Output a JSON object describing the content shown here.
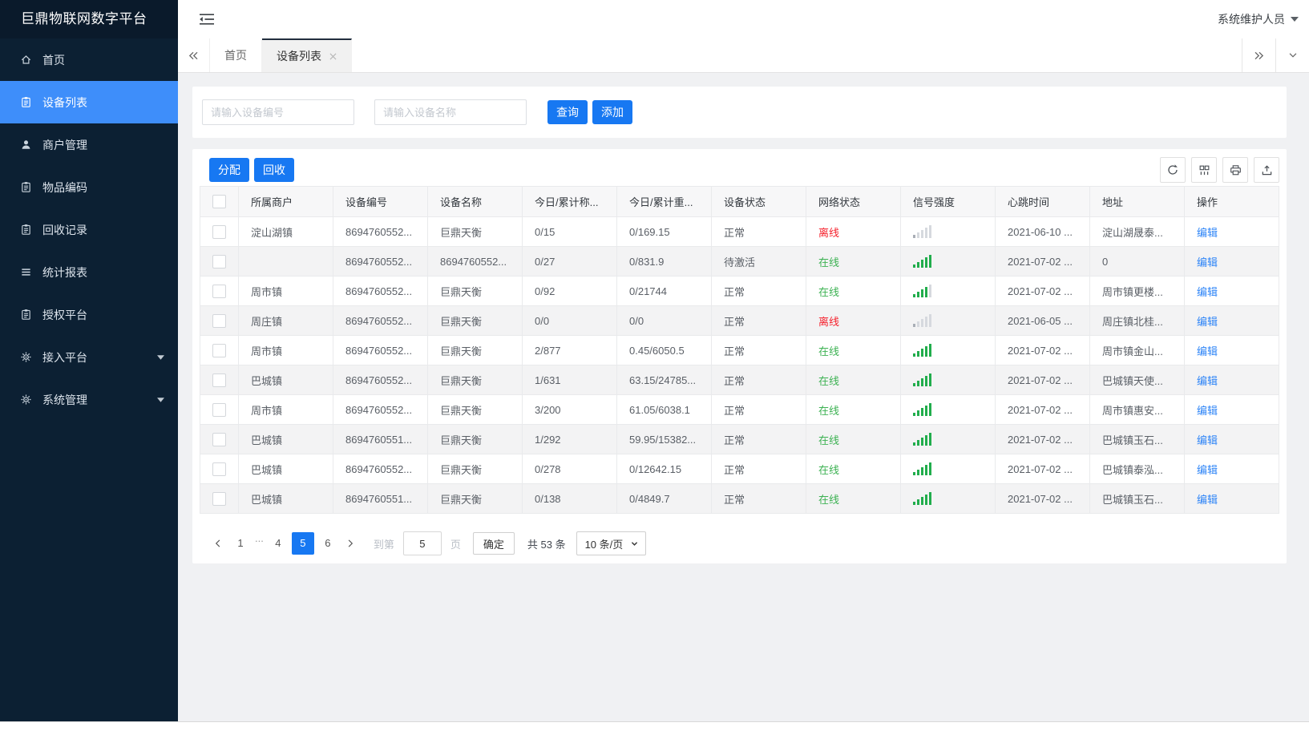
{
  "app": {
    "title": "巨鼎物联网数字平台",
    "user": "系统维护人员"
  },
  "colors": {
    "accent": "#1778f2",
    "sidebar_bg": "#0c2033",
    "sidebar_active": "#3e8efa",
    "online_green": "#3db253",
    "offline_red": "#f5222d",
    "signal_green": "#21ad4c",
    "link_blue": "#2d84f7"
  },
  "sidebar": {
    "items": [
      {
        "key": "home",
        "label": "首页",
        "icon": "home",
        "active": false,
        "expandable": false
      },
      {
        "key": "device-list",
        "label": "设备列表",
        "icon": "doc",
        "active": true,
        "expandable": false
      },
      {
        "key": "merchant-mgmt",
        "label": "商户管理",
        "icon": "user",
        "active": false,
        "expandable": false
      },
      {
        "key": "item-code",
        "label": "物品编码",
        "icon": "doc",
        "active": false,
        "expandable": false
      },
      {
        "key": "recycle-records",
        "label": "回收记录",
        "icon": "doc",
        "active": false,
        "expandable": false
      },
      {
        "key": "stats-report",
        "label": "统计报表",
        "icon": "rows",
        "active": false,
        "expandable": false
      },
      {
        "key": "auth-platform",
        "label": "授权平台",
        "icon": "doc",
        "active": false,
        "expandable": false
      },
      {
        "key": "access-platform",
        "label": "接入平台",
        "icon": "gear",
        "active": false,
        "expandable": true
      },
      {
        "key": "system-mgmt",
        "label": "系统管理",
        "icon": "gear",
        "active": false,
        "expandable": true
      }
    ]
  },
  "tabs": {
    "items": [
      {
        "key": "home",
        "label": "首页",
        "active": false,
        "closable": false
      },
      {
        "key": "device-list",
        "label": "设备列表",
        "active": true,
        "closable": true
      }
    ]
  },
  "search": {
    "device_no_placeholder": "请输入设备编号",
    "device_name_placeholder": "请输入设备名称",
    "query_label": "查询",
    "add_label": "添加"
  },
  "toolbar": {
    "assign_label": "分配",
    "recycle_label": "回收",
    "icons": [
      "refresh-icon",
      "filter-columns-icon",
      "print-icon",
      "export-icon"
    ]
  },
  "table": {
    "columns": [
      "所属商户",
      "设备编号",
      "设备名称",
      "今日/累计称...",
      "今日/累计重...",
      "设备状态",
      "网络状态",
      "信号强度",
      "心跳时间",
      "地址",
      "操作"
    ],
    "action_label": "编辑",
    "rows": [
      {
        "merchant": "淀山湖镇",
        "device_no": "8694760552...",
        "device_name": "巨鼎天衡",
        "today_total_count": "0/15",
        "today_total_weight": "0/169.15",
        "device_status": "正常",
        "network_status": "离线",
        "online": false,
        "signal_bars": 0,
        "heartbeat": "2021-06-10 ...",
        "address": "淀山湖晟泰..."
      },
      {
        "merchant": "",
        "device_no": "8694760552...",
        "device_name": "8694760552...",
        "today_total_count": "0/27",
        "today_total_weight": "0/831.9",
        "device_status": "待激活",
        "network_status": "在线",
        "online": true,
        "signal_bars": 5,
        "heartbeat": "2021-07-02 ...",
        "address": "0"
      },
      {
        "merchant": "周市镇",
        "device_no": "8694760552...",
        "device_name": "巨鼎天衡",
        "today_total_count": "0/92",
        "today_total_weight": "0/21744",
        "device_status": "正常",
        "network_status": "在线",
        "online": true,
        "signal_bars": 4,
        "heartbeat": "2021-07-02 ...",
        "address": "周市镇更楼..."
      },
      {
        "merchant": "周庄镇",
        "device_no": "8694760552...",
        "device_name": "巨鼎天衡",
        "today_total_count": "0/0",
        "today_total_weight": "0/0",
        "device_status": "正常",
        "network_status": "离线",
        "online": false,
        "signal_bars": 0,
        "heartbeat": "2021-06-05 ...",
        "address": "周庄镇北桂..."
      },
      {
        "merchant": "周市镇",
        "device_no": "8694760552...",
        "device_name": "巨鼎天衡",
        "today_total_count": "2/877",
        "today_total_weight": "0.45/6050.5",
        "device_status": "正常",
        "network_status": "在线",
        "online": true,
        "signal_bars": 5,
        "heartbeat": "2021-07-02 ...",
        "address": "周市镇金山..."
      },
      {
        "merchant": "巴城镇",
        "device_no": "8694760552...",
        "device_name": "巨鼎天衡",
        "today_total_count": "1/631",
        "today_total_weight": "63.15/24785...",
        "device_status": "正常",
        "network_status": "在线",
        "online": true,
        "signal_bars": 5,
        "heartbeat": "2021-07-02 ...",
        "address": "巴城镇天使..."
      },
      {
        "merchant": "周市镇",
        "device_no": "8694760552...",
        "device_name": "巨鼎天衡",
        "today_total_count": "3/200",
        "today_total_weight": "61.05/6038.1",
        "device_status": "正常",
        "network_status": "在线",
        "online": true,
        "signal_bars": 5,
        "heartbeat": "2021-07-02 ...",
        "address": "周市镇惠安..."
      },
      {
        "merchant": "巴城镇",
        "device_no": "8694760551...",
        "device_name": "巨鼎天衡",
        "today_total_count": "1/292",
        "today_total_weight": "59.95/15382...",
        "device_status": "正常",
        "network_status": "在线",
        "online": true,
        "signal_bars": 5,
        "heartbeat": "2021-07-02 ...",
        "address": "巴城镇玉石..."
      },
      {
        "merchant": "巴城镇",
        "device_no": "8694760552...",
        "device_name": "巨鼎天衡",
        "today_total_count": "0/278",
        "today_total_weight": "0/12642.15",
        "device_status": "正常",
        "network_status": "在线",
        "online": true,
        "signal_bars": 5,
        "heartbeat": "2021-07-02 ...",
        "address": "巴城镇泰泓..."
      },
      {
        "merchant": "巴城镇",
        "device_no": "8694760551...",
        "device_name": "巨鼎天衡",
        "today_total_count": "0/138",
        "today_total_weight": "0/4849.7",
        "device_status": "正常",
        "network_status": "在线",
        "online": true,
        "signal_bars": 5,
        "heartbeat": "2021-07-02 ...",
        "address": "巴城镇玉石..."
      }
    ]
  },
  "pagination": {
    "pages": [
      "1",
      "...",
      "4",
      "5",
      "6"
    ],
    "active_page": "5",
    "goto_label": "到第",
    "goto_value": "5",
    "page_unit_label": "页",
    "confirm_label": "确定",
    "total_label": "共 53 条",
    "page_size_label": "10 条/页"
  }
}
